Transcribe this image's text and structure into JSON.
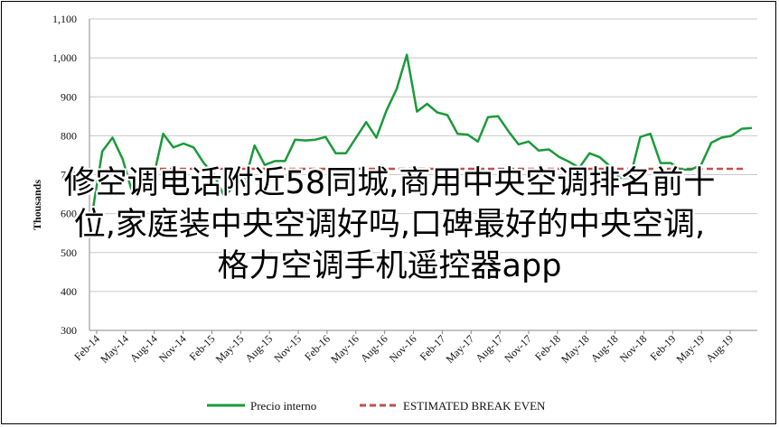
{
  "chart_data": {
    "type": "line",
    "title": "",
    "xlabel": "",
    "ylabel": "Thousands",
    "ylim": [
      300,
      1100
    ],
    "yticks": [
      "300",
      "400",
      "500",
      "600",
      "700",
      "800",
      "900",
      "1,000",
      "1,100"
    ],
    "ytick_values": [
      300,
      400,
      500,
      600,
      700,
      800,
      900,
      1000,
      1100
    ],
    "grid": "horizontal",
    "legend_position": "bottom",
    "xtick_labels": [
      "Feb-14",
      "May-14",
      "Aug-14",
      "Nov-14",
      "Feb-15",
      "May-15",
      "Aug-15",
      "Nov-15",
      "Feb-16",
      "May-16",
      "Aug-16",
      "Nov-16",
      "Feb-17",
      "May-17",
      "Aug-17",
      "Nov-17",
      "Feb-18",
      "May-18",
      "Aug-18",
      "Nov-18",
      "Feb-19",
      "May-19",
      "Aug-19"
    ],
    "series": [
      {
        "name": "Precio interno",
        "color": "#1a9a3a",
        "style": "solid",
        "values": [
          600,
          760,
          795,
          740,
          650,
          655,
          690,
          805,
          770,
          780,
          770,
          730,
          700,
          645,
          670,
          680,
          775,
          725,
          735,
          735,
          790,
          788,
          790,
          797,
          755,
          755,
          795,
          835,
          795,
          865,
          920,
          1008,
          862,
          882,
          860,
          853,
          805,
          803,
          785,
          848,
          850,
          812,
          778,
          785,
          762,
          765,
          746,
          733,
          718,
          755,
          745,
          722,
          692,
          692,
          797,
          805,
          730,
          730,
          713,
          713,
          725,
          782,
          795,
          800,
          818,
          820
        ]
      },
      {
        "name": "ESTIMATED BREAK EVEN",
        "color": "#c0504d",
        "style": "dashed",
        "values": [
          715,
          715
        ]
      }
    ]
  },
  "overlay": {
    "line1": "修空调电话附近58同城,商用中央空调排名前十",
    "line2": "位,家庭装中央空调好吗,口碑最好的中央空调,",
    "line3": "格力空调手机遥控器app"
  }
}
